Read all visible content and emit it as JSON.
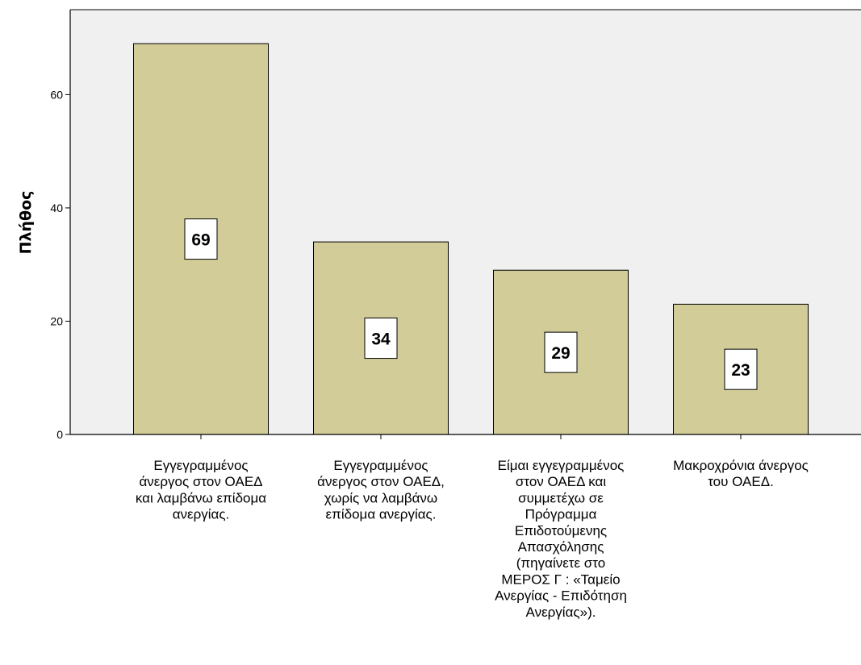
{
  "chart_data": {
    "type": "bar",
    "ylabel": "Πλήθος",
    "xlabel": "",
    "ylim": [
      0,
      75
    ],
    "yticks": [
      0,
      20,
      40,
      60
    ],
    "values": [
      69,
      34,
      29,
      23
    ],
    "bar_color": "#d2cc98",
    "plot_background": "#f0f0f0",
    "categories": [
      [
        "Εγγεγραμμένος",
        "άνεργος στον ΟΑΕΔ",
        "και λαμβάνω επίδομα",
        "ανεργίας."
      ],
      [
        "Εγγεγραμμένος",
        "άνεργος στον ΟΑΕΔ,",
        "χωρίς να λαμβάνω",
        "επίδομα ανεργίας."
      ],
      [
        "Είμαι εγγεγραμμένος",
        "στον ΟΑΕΔ και",
        "συμμετέχω σε",
        "Πρόγραμμα",
        "Επιδοτούμενης",
        "Απασχόλησης",
        "(πηγαίνετε στο",
        "ΜΕΡΟΣ Γ : «Ταμείο",
        "Ανεργίας - Επιδότηση",
        "Ανεργίας»)."
      ],
      [
        "Μακροχρόνια άνεργος",
        "του ΟΑΕΔ."
      ]
    ]
  }
}
